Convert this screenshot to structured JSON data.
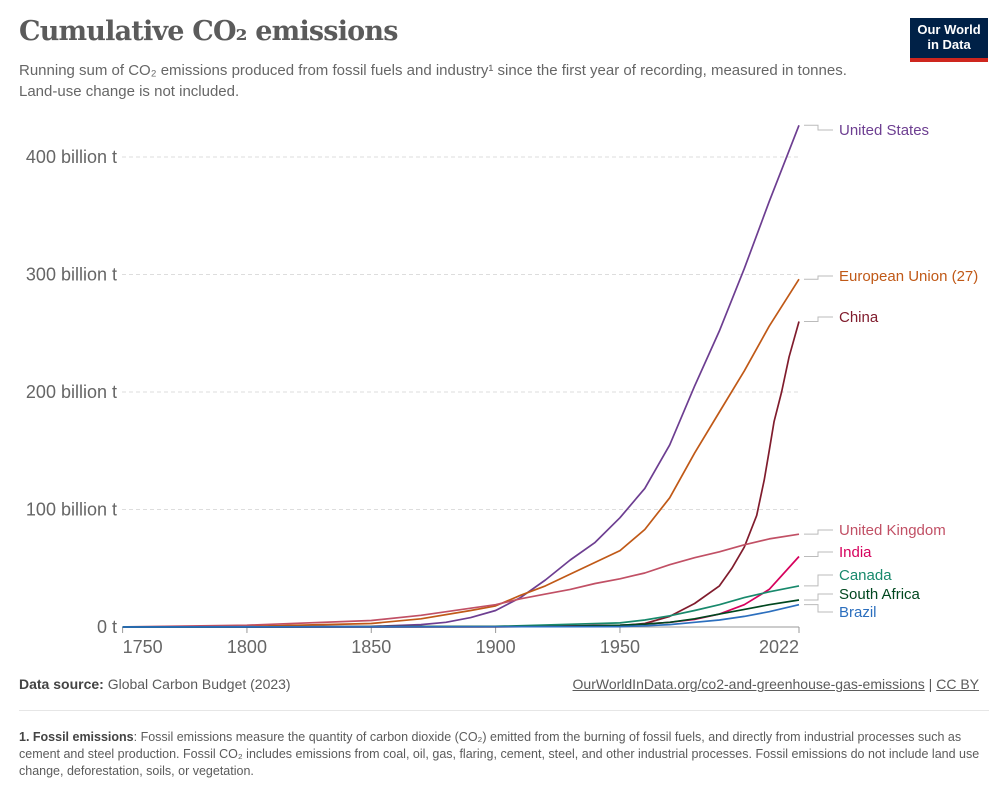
{
  "header": {
    "title": "Cumulative CO₂ emissions",
    "subtitle": "Running sum of CO₂ emissions produced from fossil fuels and industry¹ since the first year of recording, measured in tonnes. Land-use change is not included.",
    "logo_line1": "Our World",
    "logo_line2": "in Data"
  },
  "footer": {
    "source_label": "Data source:",
    "source_value": "Global Carbon Budget (2023)",
    "link": "OurWorldInData.org/co2-and-greenhouse-gas-emissions",
    "separator": "|",
    "license": "CC BY",
    "note_label": "1. Fossil emissions",
    "note_text": ": Fossil emissions measure the quantity of carbon dioxide (CO₂) emitted from the burning of fossil fuels, and directly from industrial processes such as cement and steel production. Fossil CO₂ includes emissions from coal, oil, gas, flaring, cement, steel, and other industrial processes. Fossil emissions do not include land use change, deforestation, soils, or vegetation."
  },
  "chart_data": {
    "type": "line",
    "title": "Cumulative CO₂ emissions",
    "xlim": [
      1750,
      2022
    ],
    "ylim": [
      0,
      430
    ],
    "x_ticks": [
      1750,
      1800,
      1850,
      1900,
      1950,
      2022
    ],
    "y_ticks": [
      {
        "value": 0,
        "label": "0 t"
      },
      {
        "value": 100,
        "label": "100 billion t"
      },
      {
        "value": 200,
        "label": "200 billion t"
      },
      {
        "value": 300,
        "label": "300 billion t"
      },
      {
        "value": 400,
        "label": "400 billion t"
      }
    ],
    "y_unit": "billion t",
    "grid": "horizontal dashed",
    "legend": "right (line-end labels)",
    "series": [
      {
        "name": "United States",
        "color": "#6d3e91",
        "x": [
          1750,
          1800,
          1850,
          1870,
          1880,
          1890,
          1900,
          1910,
          1920,
          1930,
          1940,
          1950,
          1960,
          1970,
          1980,
          1990,
          2000,
          2010,
          2022
        ],
        "y": [
          0,
          0.1,
          0.5,
          2,
          4,
          8,
          14,
          25,
          40,
          57,
          72,
          93,
          118,
          155,
          205,
          252,
          305,
          362,
          427
        ]
      },
      {
        "name": "European Union (27)",
        "color": "#c05917",
        "x": [
          1750,
          1800,
          1850,
          1870,
          1890,
          1900,
          1910,
          1920,
          1930,
          1940,
          1950,
          1960,
          1970,
          1980,
          1990,
          2000,
          2010,
          2022
        ],
        "y": [
          0,
          0.5,
          3,
          7,
          14,
          18,
          27,
          35,
          45,
          55,
          65,
          83,
          110,
          148,
          183,
          218,
          256,
          296
        ]
      },
      {
        "name": "China",
        "color": "#801c2d",
        "x": [
          1750,
          1900,
          1950,
          1960,
          1970,
          1980,
          1990,
          1995,
          2000,
          2005,
          2008,
          2010,
          2012,
          2015,
          2018,
          2022
        ],
        "y": [
          0,
          0.1,
          1,
          3,
          9,
          20,
          35,
          50,
          68,
          95,
          125,
          150,
          175,
          200,
          230,
          260
        ]
      },
      {
        "name": "United Kingdom",
        "color": "#c15065",
        "x": [
          1750,
          1800,
          1850,
          1870,
          1890,
          1900,
          1910,
          1920,
          1930,
          1940,
          1950,
          1960,
          1970,
          1980,
          1990,
          2000,
          2010,
          2022
        ],
        "y": [
          0.1,
          1.5,
          5.5,
          10,
          16,
          19,
          24,
          28,
          32,
          37,
          41,
          46,
          53,
          59,
          64,
          70,
          75,
          79
        ]
      },
      {
        "name": "India",
        "color": "#d6005c",
        "x": [
          1750,
          1900,
          1950,
          1960,
          1970,
          1980,
          1990,
          2000,
          2010,
          2022
        ],
        "y": [
          0,
          0.3,
          1.5,
          2.5,
          4,
          6.5,
          11,
          19,
          32,
          60
        ]
      },
      {
        "name": "Canada",
        "color": "#18896c",
        "x": [
          1750,
          1900,
          1950,
          1960,
          1970,
          1980,
          1990,
          2000,
          2010,
          2022
        ],
        "y": [
          0,
          0.5,
          3.5,
          6,
          9.5,
          14,
          19,
          25,
          30,
          35
        ]
      },
      {
        "name": "South Africa",
        "color": "#00471f",
        "x": [
          1750,
          1920,
          1950,
          1960,
          1970,
          1980,
          1990,
          2000,
          2010,
          2022
        ],
        "y": [
          0,
          0.3,
          1.5,
          2.5,
          4,
          7,
          11,
          15,
          19,
          23
        ]
      },
      {
        "name": "Brazil",
        "color": "#2c6fbe",
        "x": [
          1750,
          1950,
          1960,
          1970,
          1980,
          1990,
          2000,
          2010,
          2022
        ],
        "y": [
          0,
          0.3,
          1,
          2,
          4,
          6,
          9,
          13,
          19
        ]
      }
    ]
  }
}
